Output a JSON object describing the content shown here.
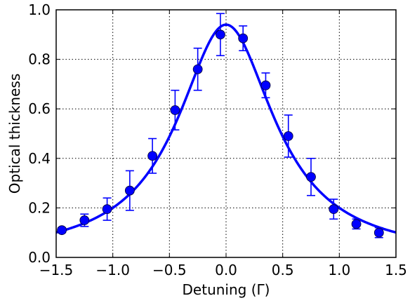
{
  "chart_data": {
    "type": "scatter",
    "xlabel": "Detuning (Γ)",
    "ylabel": "Optical thickness",
    "xlim": [
      -1.5,
      1.5
    ],
    "ylim": [
      0.0,
      1.0
    ],
    "x_ticks": [
      "−1.5",
      "−1.0",
      "−0.5",
      "0.0",
      "0.5",
      "1.0",
      "1.5"
    ],
    "y_ticks": [
      "0.0",
      "0.2",
      "0.4",
      "0.6",
      "0.8",
      "1.0"
    ],
    "grid": true,
    "grid_style": "dotted",
    "series": [
      {
        "kind": "points-with-errorbars",
        "color": "#0000ff",
        "points": [
          {
            "x": -1.45,
            "y": 0.11,
            "err": 0.01
          },
          {
            "x": -1.25,
            "y": 0.15,
            "err": 0.025
          },
          {
            "x": -1.05,
            "y": 0.195,
            "err": 0.045
          },
          {
            "x": -0.85,
            "y": 0.27,
            "err": 0.08
          },
          {
            "x": -0.65,
            "y": 0.41,
            "err": 0.07
          },
          {
            "x": -0.45,
            "y": 0.595,
            "err": 0.08
          },
          {
            "x": -0.25,
            "y": 0.76,
            "err": 0.085
          },
          {
            "x": -0.05,
            "y": 0.9,
            "err": 0.085
          },
          {
            "x": 0.15,
            "y": 0.885,
            "err": 0.05
          },
          {
            "x": 0.35,
            "y": 0.695,
            "err": 0.05
          },
          {
            "x": 0.55,
            "y": 0.49,
            "err": 0.085
          },
          {
            "x": 0.75,
            "y": 0.325,
            "err": 0.075
          },
          {
            "x": 0.95,
            "y": 0.195,
            "err": 0.04
          },
          {
            "x": 1.15,
            "y": 0.135,
            "err": 0.02
          },
          {
            "x": 1.35,
            "y": 0.1,
            "err": 0.02
          }
        ]
      },
      {
        "kind": "fit-line",
        "color": "#0000ff",
        "model": "lorentzian",
        "peak": 0.94,
        "center": 0.0,
        "hwhm": 0.52
      }
    ]
  }
}
